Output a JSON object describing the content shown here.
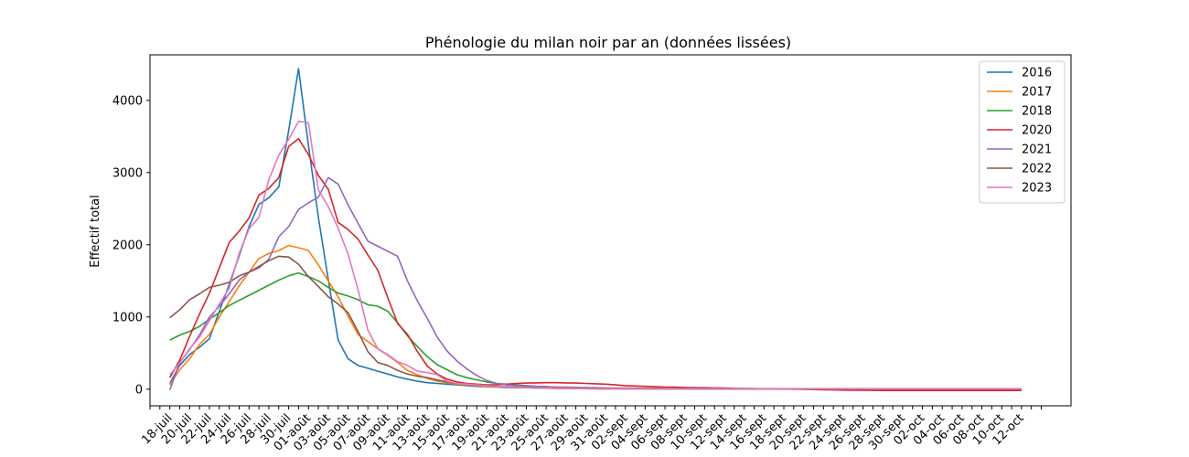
{
  "chart_data": {
    "type": "line",
    "title": "Phénologie du milan noir par an (données lissées)",
    "xlabel": "",
    "ylabel": "Effectif total",
    "ylim": [
      -230,
      4630
    ],
    "yticks": [
      0,
      1000,
      2000,
      3000,
      4000
    ],
    "categories": [
      "18-juil",
      "19-juil",
      "20-juil",
      "21-juil",
      "22-juil",
      "23-juil",
      "24-juil",
      "25-juil",
      "26-juil",
      "27-juil",
      "28-juil",
      "29-juil",
      "30-juil",
      "31-juil",
      "01-août",
      "02-août",
      "03-août",
      "04-août",
      "05-août",
      "06-août",
      "07-août",
      "08-août",
      "09-août",
      "10-août",
      "11-août",
      "12-août",
      "13-août",
      "14-août",
      "15-août",
      "16-août",
      "17-août",
      "18-août",
      "19-août",
      "20-août",
      "21-août",
      "22-août",
      "23-août",
      "24-août",
      "25-août",
      "26-août",
      "27-août",
      "28-août",
      "29-août",
      "30-août",
      "31-août",
      "01-sept",
      "02-sept",
      "03-sept",
      "04-sept",
      "05-sept",
      "06-sept",
      "07-sept",
      "08-sept",
      "09-sept",
      "10-sept",
      "11-sept",
      "12-sept",
      "13-sept",
      "14-sept",
      "15-sept",
      "16-sept",
      "17-sept",
      "18-sept",
      "19-sept",
      "20-sept",
      "21-sept",
      "22-sept",
      "23-sept",
      "24-sept",
      "25-sept",
      "26-sept",
      "27-sept",
      "28-sept",
      "29-sept",
      "30-sept",
      "01-oct",
      "02-oct",
      "03-oct",
      "04-oct",
      "05-oct",
      "06-oct",
      "07-oct",
      "08-oct",
      "09-oct",
      "10-oct",
      "11-oct",
      "12-oct"
    ],
    "xtick_labels": [
      "18-juil",
      "20-juil",
      "22-juil",
      "24-juil",
      "26-juil",
      "28-juil",
      "30-juil",
      "01-août",
      "03-août",
      "05-août",
      "07-août",
      "09-août",
      "11-août",
      "13-août",
      "15-août",
      "17-août",
      "19-août",
      "21-août",
      "23-août",
      "25-août",
      "27-août",
      "29-août",
      "31-août",
      "02-sept",
      "04-sept",
      "06-sept",
      "08-sept",
      "10-sept",
      "12-sept",
      "14-sept",
      "16-sept",
      "18-sept",
      "20-sept",
      "22-sept",
      "24-sept",
      "26-sept",
      "28-sept",
      "30-sept",
      "02-oct",
      "04-oct",
      "06-oct",
      "08-oct",
      "10-oct",
      "12-oct"
    ],
    "xlim": [
      -2,
      91
    ],
    "legend": "top-right",
    "grid": false,
    "series": [
      {
        "name": "2016",
        "color": "#1f77b4",
        "values": [
          80,
          330,
          480,
          580,
          700,
          1080,
          1450,
          1850,
          2250,
          2560,
          2650,
          2800,
          3580,
          4440,
          3380,
          2380,
          1520,
          680,
          420,
          330,
          290,
          250,
          210,
          170,
          140,
          110,
          90,
          80,
          70,
          60,
          50,
          40,
          35,
          30,
          25,
          20,
          20,
          15,
          15,
          10,
          10,
          10,
          8,
          6,
          5,
          5,
          5,
          5,
          4,
          4,
          3,
          3,
          3,
          2,
          2,
          2,
          2,
          2,
          2,
          2,
          2,
          2,
          2,
          2,
          2,
          2,
          2,
          2,
          2,
          2,
          2,
          2,
          2,
          2,
          2,
          2,
          2,
          2,
          2,
          2,
          2,
          2,
          2,
          2,
          2,
          2,
          2
        ]
      },
      {
        "name": "2017",
        "color": "#ff7f0e",
        "values": [
          60,
          270,
          420,
          620,
          760,
          1000,
          1210,
          1430,
          1620,
          1810,
          1880,
          1920,
          1990,
          1960,
          1920,
          1720,
          1500,
          1280,
          1010,
          760,
          660,
          560,
          470,
          370,
          260,
          200,
          150,
          110,
          90,
          70,
          60,
          50,
          40,
          35,
          30,
          25,
          20,
          20,
          15,
          12,
          10,
          10,
          8,
          8,
          6,
          6,
          5,
          5,
          4,
          4,
          4,
          3,
          3,
          3,
          3,
          3,
          3,
          2,
          2,
          2,
          2,
          2,
          2,
          2,
          2,
          2,
          2,
          2,
          2,
          2,
          2,
          2,
          2,
          2,
          2,
          2,
          2,
          2,
          2,
          2,
          2,
          2,
          2,
          2,
          2,
          2,
          2
        ]
      },
      {
        "name": "2018",
        "color": "#2ca02c",
        "values": [
          680,
          750,
          800,
          870,
          970,
          1060,
          1160,
          1230,
          1300,
          1370,
          1440,
          1510,
          1570,
          1610,
          1560,
          1500,
          1410,
          1330,
          1290,
          1240,
          1170,
          1150,
          1080,
          920,
          740,
          590,
          450,
          340,
          270,
          200,
          160,
          130,
          100,
          80,
          70,
          60,
          50,
          40,
          35,
          30,
          25,
          20,
          18,
          15,
          12,
          10,
          10,
          8,
          8,
          6,
          6,
          5,
          5,
          5,
          4,
          4,
          4,
          3,
          3,
          3,
          3,
          3,
          3,
          3,
          3,
          3,
          3,
          3,
          3,
          3,
          3,
          3,
          3,
          3,
          3,
          3,
          3,
          3,
          3,
          3,
          3,
          3,
          3,
          3,
          3,
          3,
          3
        ]
      },
      {
        "name": "2020",
        "color": "#d62728",
        "values": [
          160,
          400,
          730,
          1040,
          1330,
          1680,
          2030,
          2190,
          2370,
          2690,
          2780,
          2930,
          3360,
          3470,
          3250,
          2960,
          2770,
          2310,
          2210,
          2080,
          1860,
          1650,
          1270,
          910,
          760,
          520,
          320,
          210,
          140,
          100,
          80,
          70,
          60,
          60,
          70,
          80,
          85,
          88,
          90,
          90,
          88,
          85,
          80,
          75,
          70,
          60,
          50,
          45,
          40,
          35,
          30,
          28,
          25,
          22,
          20,
          18,
          15,
          12,
          10,
          8,
          6,
          5,
          3,
          0,
          -2,
          -5,
          -8,
          -10,
          -12,
          -14,
          -15,
          -16,
          -17,
          -18,
          -18,
          -18,
          -18,
          -18,
          -18,
          -18,
          -18,
          -18,
          -18,
          -18,
          -18,
          -18,
          -18
        ]
      },
      {
        "name": "2021",
        "color": "#9467bd",
        "values": [
          -10,
          370,
          550,
          750,
          1000,
          1150,
          1320,
          1510,
          1620,
          1680,
          1800,
          2110,
          2250,
          2490,
          2580,
          2660,
          2930,
          2840,
          2550,
          2300,
          2050,
          1980,
          1910,
          1840,
          1500,
          1220,
          980,
          720,
          530,
          390,
          280,
          190,
          120,
          80,
          60,
          50,
          45,
          40,
          35,
          30,
          28,
          25,
          22,
          20,
          18,
          16,
          15,
          14,
          13,
          12,
          11,
          10,
          10,
          9,
          8,
          8,
          7,
          7,
          6,
          6,
          5,
          5,
          5,
          4,
          4,
          4,
          4,
          3,
          3,
          3,
          3,
          3,
          3,
          3,
          2,
          2,
          2,
          2,
          2,
          2,
          2,
          2,
          2,
          2,
          2,
          2,
          2
        ]
      },
      {
        "name": "2022",
        "color": "#8c564b",
        "values": [
          990,
          1100,
          1240,
          1320,
          1410,
          1440,
          1480,
          1570,
          1620,
          1700,
          1780,
          1840,
          1830,
          1730,
          1560,
          1420,
          1280,
          1180,
          1060,
          800,
          520,
          370,
          330,
          260,
          210,
          180,
          160,
          130,
          100,
          80,
          70,
          60,
          50,
          40,
          35,
          30,
          25,
          22,
          20,
          18,
          16,
          15,
          14,
          13,
          12,
          11,
          10,
          10,
          9,
          9,
          8,
          8,
          8,
          7,
          7,
          7,
          7,
          6,
          6,
          6,
          6,
          6,
          6,
          5,
          5,
          5,
          5,
          5,
          5,
          5,
          5,
          5,
          5,
          5,
          5,
          5,
          5,
          5,
          5,
          5,
          5,
          5,
          5,
          5,
          5,
          5,
          5
        ]
      },
      {
        "name": "2023",
        "color": "#e377c2",
        "values": [
          200,
          360,
          560,
          720,
          950,
          1180,
          1400,
          1880,
          2220,
          2380,
          2900,
          3240,
          3460,
          3710,
          3690,
          2760,
          2530,
          2230,
          1870,
          1380,
          820,
          560,
          480,
          380,
          330,
          250,
          230,
          200,
          110,
          80,
          70,
          60,
          50,
          40,
          35,
          30,
          25,
          20,
          18,
          16,
          14,
          12,
          10,
          10,
          9,
          8,
          8,
          7,
          7,
          6,
          6,
          6,
          5,
          5,
          5,
          5,
          5,
          5,
          4,
          4,
          4,
          4,
          4,
          4,
          4,
          4,
          4,
          4,
          4,
          4,
          4,
          4,
          4,
          4,
          4,
          4,
          4,
          4,
          4,
          4,
          4,
          4,
          4,
          4,
          4,
          4,
          4
        ]
      }
    ]
  }
}
